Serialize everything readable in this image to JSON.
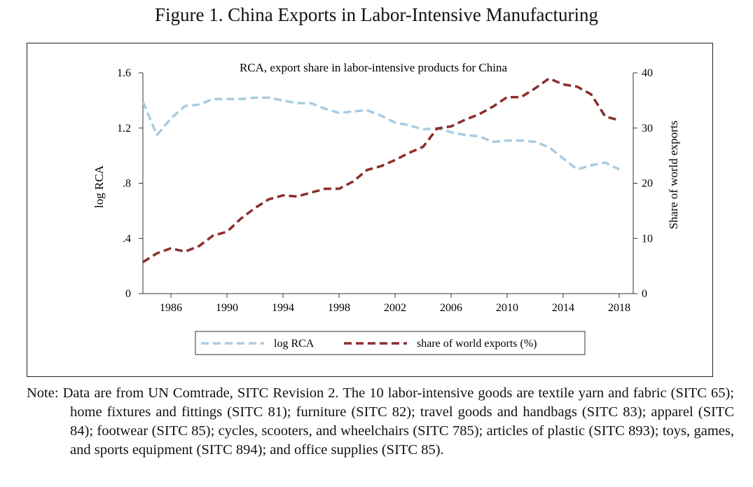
{
  "figure_title": "Figure 1. China Exports in Labor-Intensive Manufacturing",
  "note": "Note: Data are from UN Comtrade, SITC Revision 2. The 10 labor-intensive goods are textile yarn and fabric (SITC 65); home fixtures and fittings (SITC 81); furniture (SITC 82); travel goods and handbags (SITC 83); apparel (SITC 84); footwear (SITC 85); cycles, scooters, and wheelchairs (SITC 785); articles of plastic (SITC 893); toys, games, and sports equipment (SITC 894); and office supplies (SITC 85).",
  "chart_data": {
    "type": "line",
    "title": "RCA, export share in labor-intensive products for China",
    "xlabel": "",
    "ylabel_left": "log  RCA",
    "ylabel_right": "Share of  world exports",
    "x_ticks": [
      "1986",
      "1990",
      "1994",
      "1998",
      "2002",
      "2006",
      "2010",
      "2014",
      "2018"
    ],
    "y_left_ticks": [
      "0",
      ".4",
      ".8",
      "1.2",
      "1.6"
    ],
    "y_right_ticks": [
      "0",
      "10",
      "20",
      "30",
      "40"
    ],
    "ylim_left": [
      0,
      1.6
    ],
    "ylim_right": [
      0,
      40
    ],
    "xlim": [
      1984,
      2019
    ],
    "x": [
      1984,
      1985,
      1986,
      1987,
      1988,
      1989,
      1990,
      1991,
      1992,
      1993,
      1994,
      1995,
      1996,
      1997,
      1998,
      1999,
      2000,
      2001,
      2002,
      2003,
      2004,
      2005,
      2006,
      2007,
      2008,
      2009,
      2010,
      2011,
      2012,
      2013,
      2014,
      2015,
      2016,
      2017,
      2018
    ],
    "series": [
      {
        "name": "log RCA",
        "axis": "left",
        "color": "#a9cbe0",
        "style": "dashed",
        "values": [
          1.39,
          1.15,
          1.27,
          1.36,
          1.37,
          1.41,
          1.41,
          1.41,
          1.42,
          1.42,
          1.4,
          1.38,
          1.38,
          1.34,
          1.31,
          1.32,
          1.33,
          1.29,
          1.24,
          1.22,
          1.19,
          1.2,
          1.17,
          1.15,
          1.14,
          1.1,
          1.11,
          1.11,
          1.1,
          1.06,
          0.98,
          0.9,
          0.93,
          0.95,
          0.9
        ]
      },
      {
        "name": "share of world exports (%)",
        "axis": "right",
        "color": "#8b2e2e",
        "style": "dashed",
        "values": [
          5.7,
          7.3,
          8.2,
          7.6,
          8.6,
          10.5,
          11.2,
          13.6,
          15.5,
          17.1,
          17.8,
          17.6,
          18.3,
          19.0,
          19.0,
          20.3,
          22.4,
          23.1,
          24.2,
          25.5,
          26.6,
          29.9,
          30.3,
          31.5,
          32.5,
          33.9,
          35.6,
          35.6,
          37.2,
          39.0,
          37.9,
          37.5,
          36.1,
          32.1,
          31.4
        ]
      }
    ],
    "legend": [
      "log RCA",
      "share of world exports (%)"
    ],
    "legend_position": "bottom",
    "grid": false
  }
}
